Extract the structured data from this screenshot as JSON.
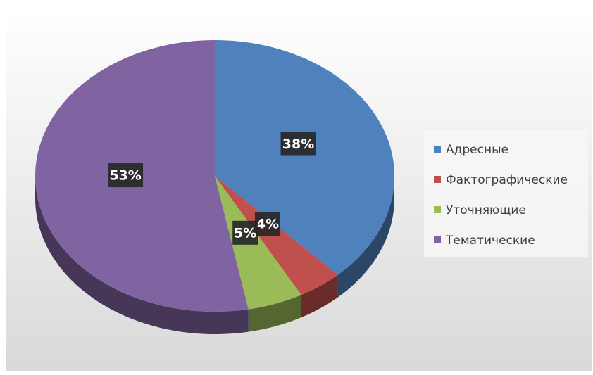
{
  "chart_data": {
    "type": "pie",
    "categories": [
      "Адресные",
      "Фактографические",
      "Уточняющие",
      "Тематические"
    ],
    "values": [
      38,
      4,
      5,
      53
    ],
    "value_labels": [
      "38%",
      "4%",
      "5%",
      "53%"
    ],
    "colors": [
      "#4f81bd",
      "#c0504d",
      "#9bbb59",
      "#8064a2"
    ],
    "legend": "right"
  }
}
